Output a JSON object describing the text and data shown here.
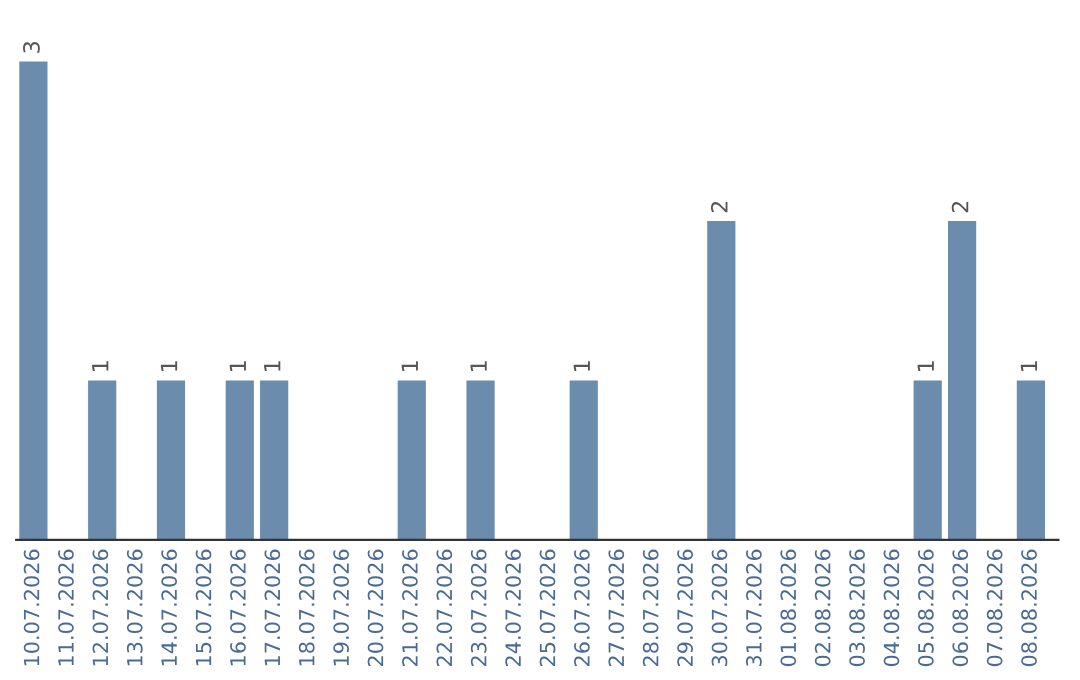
{
  "chart_data": {
    "type": "bar",
    "categories": [
      "10.07.2026",
      "11.07.2026",
      "12.07.2026",
      "13.07.2026",
      "14.07.2026",
      "15.07.2026",
      "16.07.2026",
      "17.07.2026",
      "18.07.2026",
      "19.07.2026",
      "20.07.2026",
      "21.07.2026",
      "22.07.2026",
      "23.07.2026",
      "24.07.2026",
      "25.07.2026",
      "26.07.2026",
      "27.07.2026",
      "28.07.2026",
      "29.07.2026",
      "30.07.2026",
      "31.07.2026",
      "01.08.2026",
      "02.08.2026",
      "03.08.2026",
      "04.08.2026",
      "05.08.2026",
      "06.08.2026",
      "07.08.2026",
      "08.08.2026"
    ],
    "values": [
      3,
      null,
      1,
      null,
      1,
      null,
      1,
      1,
      null,
      null,
      null,
      1,
      null,
      1,
      null,
      null,
      1,
      null,
      null,
      null,
      2,
      null,
      null,
      null,
      null,
      null,
      1,
      2,
      null,
      1
    ],
    "color": "#6b8cad",
    "data_labels": true,
    "tick_labels": "x",
    "grid": false,
    "legend": false
  }
}
